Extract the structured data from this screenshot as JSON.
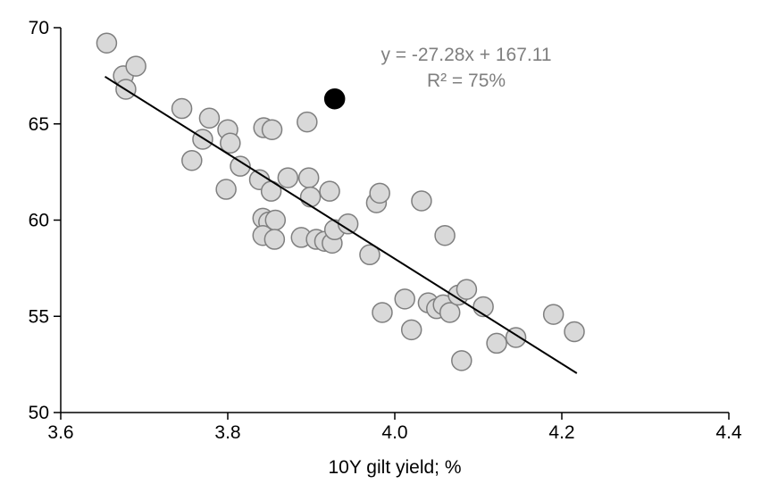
{
  "chart_data": {
    "type": "scatter",
    "title": "",
    "xlabel": "10Y gilt yield; %",
    "ylabel": "",
    "xlim": [
      3.6,
      4.4
    ],
    "ylim": [
      50,
      70
    ],
    "grid": false,
    "legend": "none",
    "x_ticks": [
      {
        "value": 3.6,
        "label": "3.6"
      },
      {
        "value": 3.8,
        "label": "3.8"
      },
      {
        "value": 4.0,
        "label": "4.0"
      },
      {
        "value": 4.2,
        "label": "4.2"
      },
      {
        "value": 4.4,
        "label": "4.4"
      }
    ],
    "y_ticks": [
      {
        "value": 50,
        "label": "50"
      },
      {
        "value": 55,
        "label": "55"
      },
      {
        "value": 60,
        "label": "60"
      },
      {
        "value": 65,
        "label": "65"
      },
      {
        "value": 70,
        "label": "70"
      }
    ],
    "annotation": {
      "equation": "y = -27.28x + 167.11",
      "r_squared": "R² = 75%"
    },
    "trend": {
      "slope": -27.28,
      "intercept": 167.11,
      "x_start": 3.653,
      "x_end": 4.218,
      "color": "#000000"
    },
    "series": [
      {
        "name": "observations",
        "marker": {
          "fill": "#d9d9d9",
          "stroke": "#7f7f7f",
          "radius": 11
        },
        "points": [
          [
            3.655,
            69.2
          ],
          [
            3.675,
            67.5
          ],
          [
            3.69,
            68.0
          ],
          [
            3.678,
            66.8
          ],
          [
            3.745,
            65.8
          ],
          [
            3.757,
            63.1
          ],
          [
            3.778,
            65.3
          ],
          [
            3.77,
            64.2
          ],
          [
            3.8,
            64.7
          ],
          [
            3.803,
            64.0
          ],
          [
            3.815,
            62.8
          ],
          [
            3.798,
            61.6
          ],
          [
            3.843,
            64.8
          ],
          [
            3.853,
            64.7
          ],
          [
            3.838,
            62.1
          ],
          [
            3.852,
            61.5
          ],
          [
            3.842,
            60.1
          ],
          [
            3.849,
            59.9
          ],
          [
            3.857,
            60.0
          ],
          [
            3.842,
            59.2
          ],
          [
            3.856,
            59.0
          ],
          [
            3.872,
            62.2
          ],
          [
            3.895,
            65.1
          ],
          [
            3.897,
            62.2
          ],
          [
            3.899,
            61.2
          ],
          [
            3.888,
            59.1
          ],
          [
            3.906,
            59.0
          ],
          [
            3.916,
            58.9
          ],
          [
            3.925,
            58.8
          ],
          [
            3.928,
            59.5
          ],
          [
            3.922,
            61.5
          ],
          [
            3.944,
            59.8
          ],
          [
            3.97,
            58.2
          ],
          [
            3.978,
            60.9
          ],
          [
            3.982,
            61.4
          ],
          [
            3.985,
            55.2
          ],
          [
            4.012,
            55.9
          ],
          [
            4.02,
            54.3
          ],
          [
            4.032,
            61.0
          ],
          [
            4.04,
            55.7
          ],
          [
            4.05,
            55.4
          ],
          [
            4.058,
            55.6
          ],
          [
            4.06,
            59.2
          ],
          [
            4.066,
            55.2
          ],
          [
            4.076,
            56.1
          ],
          [
            4.08,
            52.7
          ],
          [
            4.086,
            56.4
          ],
          [
            4.106,
            55.5
          ],
          [
            4.122,
            53.6
          ],
          [
            4.145,
            53.9
          ],
          [
            4.19,
            55.1
          ],
          [
            4.215,
            54.2
          ]
        ]
      },
      {
        "name": "highlighted-observation",
        "marker": {
          "fill": "#000000",
          "stroke": "#000000",
          "radius": 11
        },
        "points": [
          [
            3.928,
            66.3
          ]
        ]
      }
    ]
  },
  "colors": {
    "axis": "#000000",
    "annotation_text": "#7f7f7f",
    "marker_fill": "#d9d9d9",
    "marker_stroke": "#7f7f7f",
    "highlight_fill": "#000000",
    "trend_line": "#000000",
    "background": "#ffffff"
  }
}
